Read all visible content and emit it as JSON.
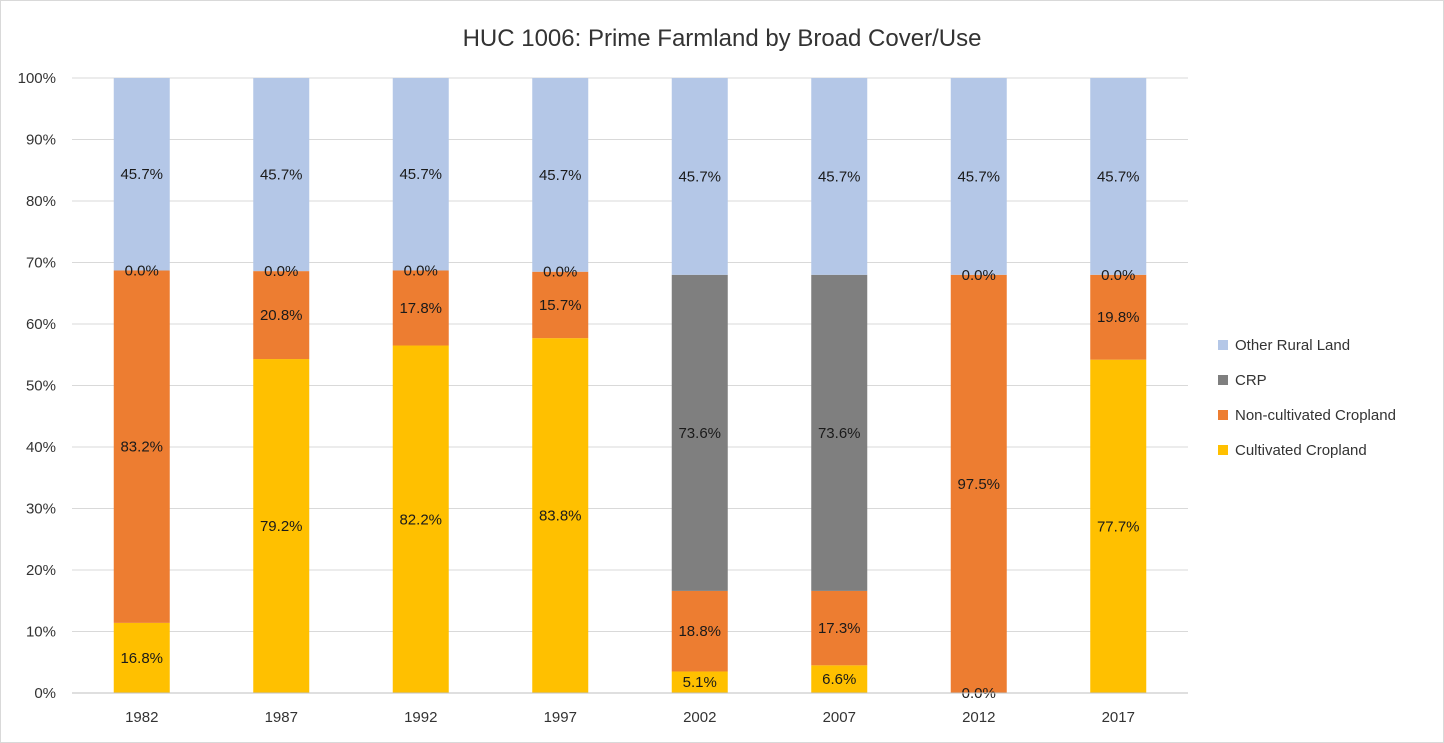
{
  "chart_data": {
    "type": "bar",
    "stacked": true,
    "percent_stacked": true,
    "title": "HUC 1006:  Prime Farmland by Broad Cover/Use",
    "categories": [
      "1982",
      "1987",
      "1992",
      "1997",
      "2002",
      "2007",
      "2012",
      "2017"
    ],
    "y_ticks": [
      "0%",
      "10%",
      "20%",
      "30%",
      "40%",
      "50%",
      "60%",
      "70%",
      "80%",
      "90%",
      "100%"
    ],
    "ylim": [
      0,
      100
    ],
    "grid": true,
    "legend_position": "right",
    "series": [
      {
        "name": "Cultivated Cropland",
        "color": "#FFC000",
        "stack_share": [
          11.4,
          54.3,
          56.5,
          57.7,
          3.5,
          4.5,
          0,
          54.2
        ],
        "labels": [
          "16.8%",
          "79.2%",
          "82.2%",
          "83.8%",
          "5.1%",
          "6.6%",
          "0.0%",
          "77.7%"
        ]
      },
      {
        "name": "Non-cultivated Cropland",
        "color": "#ED7D31",
        "stack_share": [
          57.3,
          14.3,
          12.2,
          10.8,
          13.1,
          12.1,
          68.0,
          13.8
        ],
        "labels": [
          "83.2%",
          "20.8%",
          "17.8%",
          "15.7%",
          "18.8%",
          "17.3%",
          "97.5%",
          "19.8%"
        ]
      },
      {
        "name": "CRP",
        "color": "#7F7F7F",
        "stack_share": [
          0,
          0,
          0,
          0,
          51.4,
          51.4,
          0,
          0
        ],
        "labels": [
          "0.0%",
          "0.0%",
          "0.0%",
          "0.0%",
          "73.6%",
          "73.6%",
          "0.0%",
          "0.0%"
        ]
      },
      {
        "name": "Other Rural Land",
        "color": "#B4C7E7",
        "stack_share": [
          31.3,
          31.4,
          31.3,
          31.5,
          32.0,
          32.0,
          32.0,
          32.0
        ],
        "labels": [
          "45.7%",
          "45.7%",
          "45.7%",
          "45.7%",
          "45.7%",
          "45.7%",
          "45.7%",
          "45.7%"
        ]
      }
    ]
  }
}
